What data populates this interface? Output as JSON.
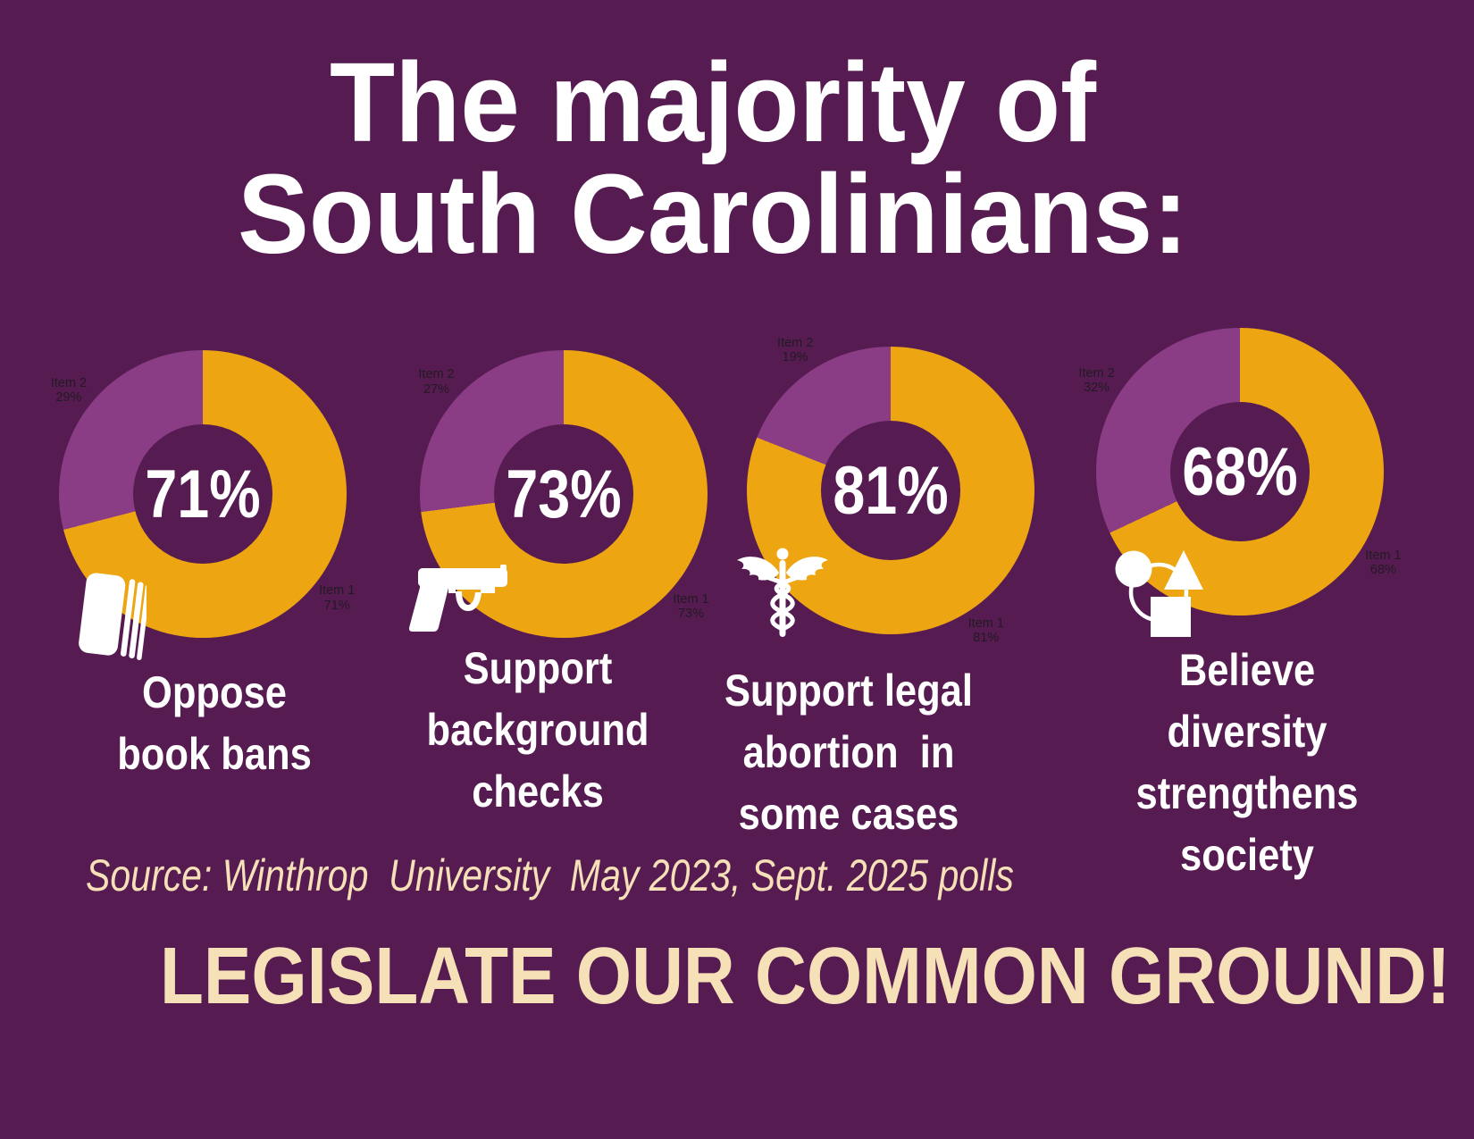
{
  "colors": {
    "background": "#561C52",
    "slice_primary": "#EDA511",
    "slice_secondary": "#8A3C85",
    "text_white": "#FFFFFF",
    "text_cream": "#F5E0B8",
    "slice_label_dark": "#221A22"
  },
  "title": {
    "text": "The majority of\nSouth Carolinians:"
  },
  "source_note": {
    "text": "Source: Winthrop  University  May 2023, Sept. 2025 polls"
  },
  "footer": {
    "text": "LEGISLATE OUR COMMON GROUND!"
  },
  "chart_data": [
    {
      "type": "pie",
      "subtype": "donut",
      "caption": "Oppose\nbook bans",
      "center_label": "71%",
      "icon": "book-icon",
      "start_angle_deg": 0,
      "direction": "clockwise",
      "legend_position": "around-slices",
      "series": [
        {
          "name": "Item 1",
          "value": 71,
          "label": "71%",
          "color": "#EDA511"
        },
        {
          "name": "Item 2",
          "value": 29,
          "label": "29%",
          "color": "#8A3C85"
        }
      ]
    },
    {
      "type": "pie",
      "subtype": "donut",
      "caption": "Support\nbackground\nchecks",
      "center_label": "73%",
      "icon": "handgun-icon",
      "start_angle_deg": 0,
      "direction": "clockwise",
      "legend_position": "around-slices",
      "series": [
        {
          "name": "Item 1",
          "value": 73,
          "label": "73%",
          "color": "#EDA511"
        },
        {
          "name": "Item 2",
          "value": 27,
          "label": "27%",
          "color": "#8A3C85"
        }
      ]
    },
    {
      "type": "pie",
      "subtype": "donut",
      "caption": "Support legal\nabortion  in\nsome cases",
      "center_label": "81%",
      "icon": "caduceus-icon",
      "start_angle_deg": 0,
      "direction": "clockwise",
      "legend_position": "around-slices",
      "series": [
        {
          "name": "Item 1",
          "value": 81,
          "label": "81%",
          "color": "#EDA511"
        },
        {
          "name": "Item 2",
          "value": 19,
          "label": "19%",
          "color": "#8A3C85"
        }
      ]
    },
    {
      "type": "pie",
      "subtype": "donut",
      "caption": "Believe\ndiversity\nstrengthens\nsociety",
      "center_label": "68%",
      "icon": "diversity-icon",
      "start_angle_deg": 0,
      "direction": "clockwise",
      "legend_position": "around-slices",
      "series": [
        {
          "name": "Item 1",
          "value": 68,
          "label": "68%",
          "color": "#EDA511"
        },
        {
          "name": "Item 2",
          "value": 32,
          "label": "32%",
          "color": "#8A3C85"
        }
      ]
    }
  ]
}
